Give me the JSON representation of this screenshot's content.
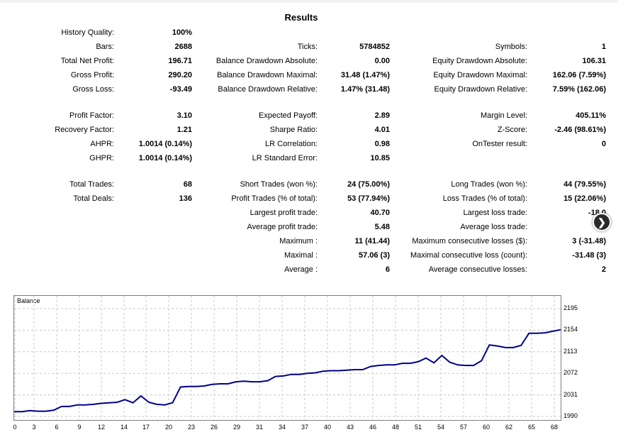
{
  "title": "Results",
  "col1": [
    {
      "label": "History Quality:",
      "value": "100%"
    },
    {
      "label": "Bars:",
      "value": "2688"
    },
    {
      "label": "Total Net Profit:",
      "value": "196.71"
    },
    {
      "label": "Gross Profit:",
      "value": "290.20"
    },
    {
      "label": "Gross Loss:",
      "value": "-93.49"
    },
    {
      "label": "Profit Factor:",
      "value": "3.10"
    },
    {
      "label": "Recovery Factor:",
      "value": "1.21"
    },
    {
      "label": "AHPR:",
      "value": "1.0014 (0.14%)"
    },
    {
      "label": "GHPR:",
      "value": "1.0014 (0.14%)"
    },
    {
      "label": "Total Trades:",
      "value": "68"
    },
    {
      "label": "Total Deals:",
      "value": "136"
    }
  ],
  "col2": [
    {
      "label": "Ticks:",
      "value": "5784852"
    },
    {
      "label": "Balance Drawdown Absolute:",
      "value": "0.00"
    },
    {
      "label": "Balance Drawdown Maximal:",
      "value": "31.48 (1.47%)"
    },
    {
      "label": "Balance Drawdown Relative:",
      "value": "1.47% (31.48)"
    },
    {
      "label": "Expected Payoff:",
      "value": "2.89"
    },
    {
      "label": "Sharpe Ratio:",
      "value": "4.01"
    },
    {
      "label": "LR Correlation:",
      "value": "0.98"
    },
    {
      "label": "LR Standard Error:",
      "value": "10.85"
    },
    {
      "label": "Short Trades (won %):",
      "value": "24 (75.00%)"
    },
    {
      "label": "Profit Trades (% of total):",
      "value": "53 (77.94%)"
    },
    {
      "label": "Largest profit trade:",
      "value": "40.70"
    },
    {
      "label": "Average profit trade:",
      "value": "5.48"
    },
    {
      "label": "Maximum :",
      "value": "11 (41.44)"
    },
    {
      "label": "Maximal :",
      "value": "57.06 (3)"
    },
    {
      "label": "Average :",
      "value": "6"
    }
  ],
  "col3": [
    {
      "label": "Symbols:",
      "value": "1"
    },
    {
      "label": "Equity Drawdown Absolute:",
      "value": "106.31"
    },
    {
      "label": "Equity Drawdown Maximal:",
      "value": "162.06 (7.59%)"
    },
    {
      "label": "Equity Drawdown Relative:",
      "value": "7.59% (162.06)"
    },
    {
      "label": "Margin Level:",
      "value": "405.11%"
    },
    {
      "label": "Z-Score:",
      "value": "-2.46 (98.61%)"
    },
    {
      "label": "OnTester result:",
      "value": "0"
    },
    {
      "label": "Long Trades (won %):",
      "value": "44 (79.55%)"
    },
    {
      "label": "Loss Trades (% of total):",
      "value": "15 (22.06%)"
    },
    {
      "label": "Largest loss trade:",
      "value": "-18.0"
    },
    {
      "label": "Average loss trade:",
      "value": "-6."
    },
    {
      "label": "Maximum consecutive losses ($):",
      "value": "3 (-31.48)"
    },
    {
      "label": "Maximal consecutive loss (count):",
      "value": "-31.48 (3)"
    },
    {
      "label": "Average consecutive losses:",
      "value": "2"
    }
  ],
  "nav_icon": "chevron-right-icon",
  "chart_data": {
    "type": "line",
    "title": "Balance",
    "series_color": "#00008b",
    "xlabel": "",
    "ylabel": "",
    "x_ticks": [
      "0",
      "3",
      "6",
      "9",
      "12",
      "14",
      "17",
      "20",
      "23",
      "26",
      "29",
      "31",
      "34",
      "37",
      "40",
      "43",
      "46",
      "48",
      "51",
      "54",
      "57",
      "60",
      "62",
      "65",
      "68"
    ],
    "y_ticks": [
      "1990",
      "2031",
      "2072",
      "2113",
      "2154",
      "2195"
    ],
    "xlim": [
      0,
      69
    ],
    "ylim": [
      1990,
      2205
    ],
    "grid": true,
    "x": [
      0,
      1,
      2,
      3,
      4,
      5,
      6,
      7,
      8,
      9,
      10,
      11,
      12,
      13,
      14,
      15,
      16,
      17,
      18,
      19,
      20,
      21,
      22,
      23,
      24,
      25,
      26,
      27,
      28,
      29,
      30,
      31,
      32,
      33,
      34,
      35,
      36,
      37,
      38,
      39,
      40,
      41,
      42,
      43,
      44,
      45,
      46,
      47,
      48,
      49,
      50,
      51,
      52,
      53,
      54,
      55,
      56,
      57,
      58,
      59,
      60,
      61,
      62,
      63,
      64,
      65,
      66,
      67,
      68,
      69
    ],
    "y": [
      1999,
      1999,
      2001,
      2000,
      2000,
      2002,
      2009,
      2009,
      2012,
      2012,
      2013,
      2015,
      2016,
      2017,
      2022,
      2016,
      2029,
      2017,
      2013,
      2012,
      2016,
      2046,
      2047,
      2047,
      2048,
      2051,
      2052,
      2052,
      2056,
      2057,
      2056,
      2056,
      2058,
      2066,
      2067,
      2070,
      2070,
      2072,
      2073,
      2076,
      2077,
      2077,
      2078,
      2079,
      2079,
      2085,
      2087,
      2088,
      2088,
      2091,
      2091,
      2094,
      2101,
      2092,
      2106,
      2093,
      2088,
      2087,
      2087,
      2096,
      2126,
      2124,
      2121,
      2121,
      2125,
      2148,
      2148,
      2149,
      2152,
      2155
    ]
  }
}
